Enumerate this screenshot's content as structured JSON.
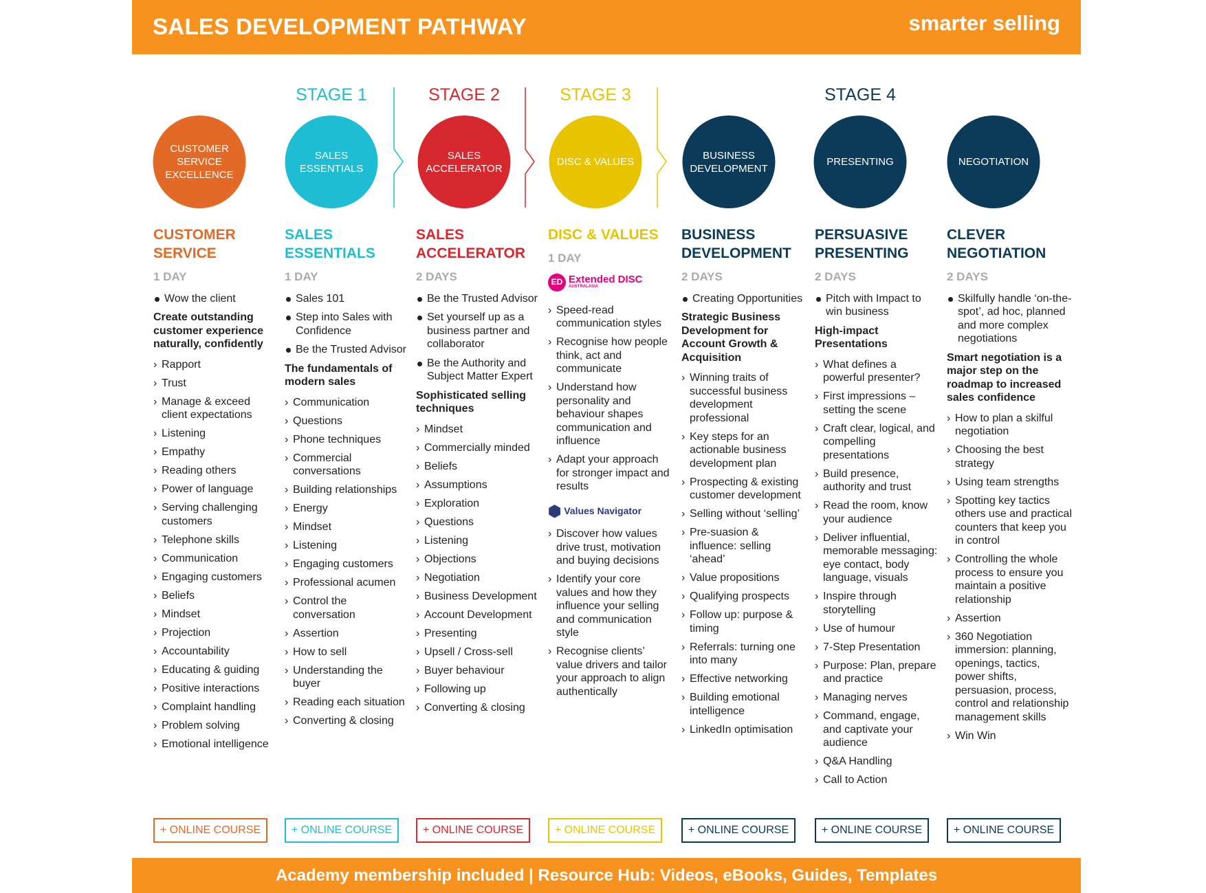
{
  "header": {
    "title": "SALES DEVELOPMENT PATHWAY",
    "brand": "smarter selling"
  },
  "stages": [
    {
      "label": "STAGE 1",
      "color": "#1FBDD3"
    },
    {
      "label": "STAGE 2",
      "color": "#D7282F"
    },
    {
      "label": "STAGE 3",
      "color": "#E8C300"
    },
    {
      "label": "STAGE 4",
      "color": "#0B3B58"
    }
  ],
  "course_label": "+ ONLINE COURSE",
  "footer": "Academy membership included | Resource Hub: Videos, eBooks, Guides, Templates",
  "columns": [
    {
      "circle": "CUSTOMER SERVICE EXCELLENCE",
      "color": "#E36A26",
      "title": "CUSTOMER SERVICE",
      "duration": "1 DAY",
      "bullets": [
        "Wow the client"
      ],
      "subheading": "Create outstanding customer experience naturally, confidently",
      "items": [
        "Rapport",
        "Trust",
        "Manage & exceed client expectations",
        "Listening",
        "Empathy",
        "Reading others",
        "Power of language",
        "Serving challenging customers",
        "Telephone skills",
        "Communication",
        "Engaging customers",
        "Beliefs",
        "Mindset",
        "Projection",
        "Accountability",
        "Educating & guiding",
        "Positive interactions",
        "Complaint handling",
        "Problem solving",
        "Emotional intelligence"
      ]
    },
    {
      "circle": "SALES ESSENTIALS",
      "color": "#1FBDD3",
      "title": "SALES ESSENTIALS",
      "duration": "1 DAY",
      "bullets": [
        "Sales 101",
        "Step into Sales with Confidence",
        "Be the Trusted Advisor"
      ],
      "subheading": "The fundamentals of modern sales",
      "items": [
        "Communication",
        "Questions",
        "Phone techniques",
        "Commercial conversations",
        "Building relationships",
        "Energy",
        "Mindset",
        "Listening",
        "Engaging customers",
        "Professional acumen",
        "Control the conversation",
        "Assertion",
        "How to sell",
        "Understanding the buyer",
        "Reading each situation",
        "Converting & closing"
      ]
    },
    {
      "circle": "SALES ACCELERATOR",
      "color": "#D7282F",
      "title": "SALES ACCELERATOR",
      "duration": "2 DAYS",
      "bullets": [
        "Be the Trusted Advisor",
        "Set yourself up as a business partner and collaborator",
        "Be the Authority and Subject Matter Expert"
      ],
      "subheading": "Sophisticated selling techniques",
      "items": [
        "Mindset",
        "Commercially minded",
        "Beliefs",
        "Assumptions",
        "Exploration",
        "Questions",
        "Listening",
        "Objections",
        "Negotiation",
        "Business Development",
        "Account Development",
        "Presenting",
        "Upsell / Cross-sell",
        "Buyer behaviour",
        "Following up",
        "Converting & closing"
      ]
    },
    {
      "circle": "DISC & VALUES",
      "color": "#E8C300",
      "title": "DISC & VALUES",
      "duration": "1 DAY",
      "logo1": {
        "badge": "ED",
        "name": "Extended DISC",
        "sub": "AUSTRALASIA",
        "color": "#E5007E"
      },
      "items": [
        "Speed-read communication styles",
        "Recognise how people think, act and communicate",
        "Understand how personality and behaviour shapes communication and influence",
        "Adapt your approach for stronger impact and results"
      ],
      "logo2": {
        "name": "Values Navigator",
        "color": "#2E3B7A"
      },
      "items2": [
        "Discover how values drive trust, motivation and buying decisions",
        "Identify your core values and how they influence your selling and communication style",
        "Recognise clients’ value drivers and tailor your approach to align authentically"
      ]
    },
    {
      "circle": "BUSINESS DEVELOPMENT",
      "color": "#0B3B58",
      "title": "BUSINESS DEVELOPMENT",
      "duration": "2 DAYS",
      "bullets": [
        "Creating Opportunities"
      ],
      "subheading": "Strategic Business Development for Account Growth & Acquisition",
      "items": [
        "Winning traits of successful business development professional",
        "Key steps for an actionable business development plan",
        "Prospecting & existing customer development",
        "Selling without ‘selling’",
        "Pre-suasion & influence: selling ‘ahead’",
        "Value propositions",
        "Qualifying prospects",
        "Follow up: purpose & timing",
        "Referrals: turning one into many",
        "Effective networking",
        "Building emotional intelligence",
        "LinkedIn optimisation"
      ]
    },
    {
      "circle": "PRESENTING",
      "color": "#0B3B58",
      "title": "PERSUASIVE PRESENTING",
      "duration": "2 DAYS",
      "bullets": [
        "Pitch with Impact to win business"
      ],
      "subheading": "High-impact Presentations",
      "items": [
        "What defines a powerful presenter?",
        "First impressions – setting the scene",
        "Craft clear, logical, and compelling presentations",
        "Build presence, authority and trust",
        "Read the room, know your audience",
        "Deliver influential, memorable messaging: eye contact, body language, visuals",
        "Inspire through storytelling",
        "Use of humour",
        "7-Step Presentation",
        "Purpose: Plan, prepare and practice",
        "Managing nerves",
        "Command, engage, and captivate your audience",
        "Q&A Handling",
        "Call to Action"
      ]
    },
    {
      "circle": "NEGOTIATION",
      "color": "#0B3B58",
      "title": "CLEVER NEGOTIATION",
      "duration": "2 DAYS",
      "bullets": [
        "Skilfully handle ‘on-the-spot’, ad hoc, planned and more complex negotiations"
      ],
      "subheading": "Smart negotiation is a major step on the roadmap to increased sales confidence",
      "items": [
        "How to plan a skilful negotiation",
        "Choosing the best strategy",
        "Using team strengths",
        "Spotting key tactics others use and practical counters that keep you in control",
        "Controlling the whole process to ensure you maintain a positive relationship",
        "Assertion",
        "360 Negotiation immersion: planning, openings, tactics, power shifts, persuasion, process, control and relationship management skills",
        "Win Win"
      ]
    }
  ]
}
